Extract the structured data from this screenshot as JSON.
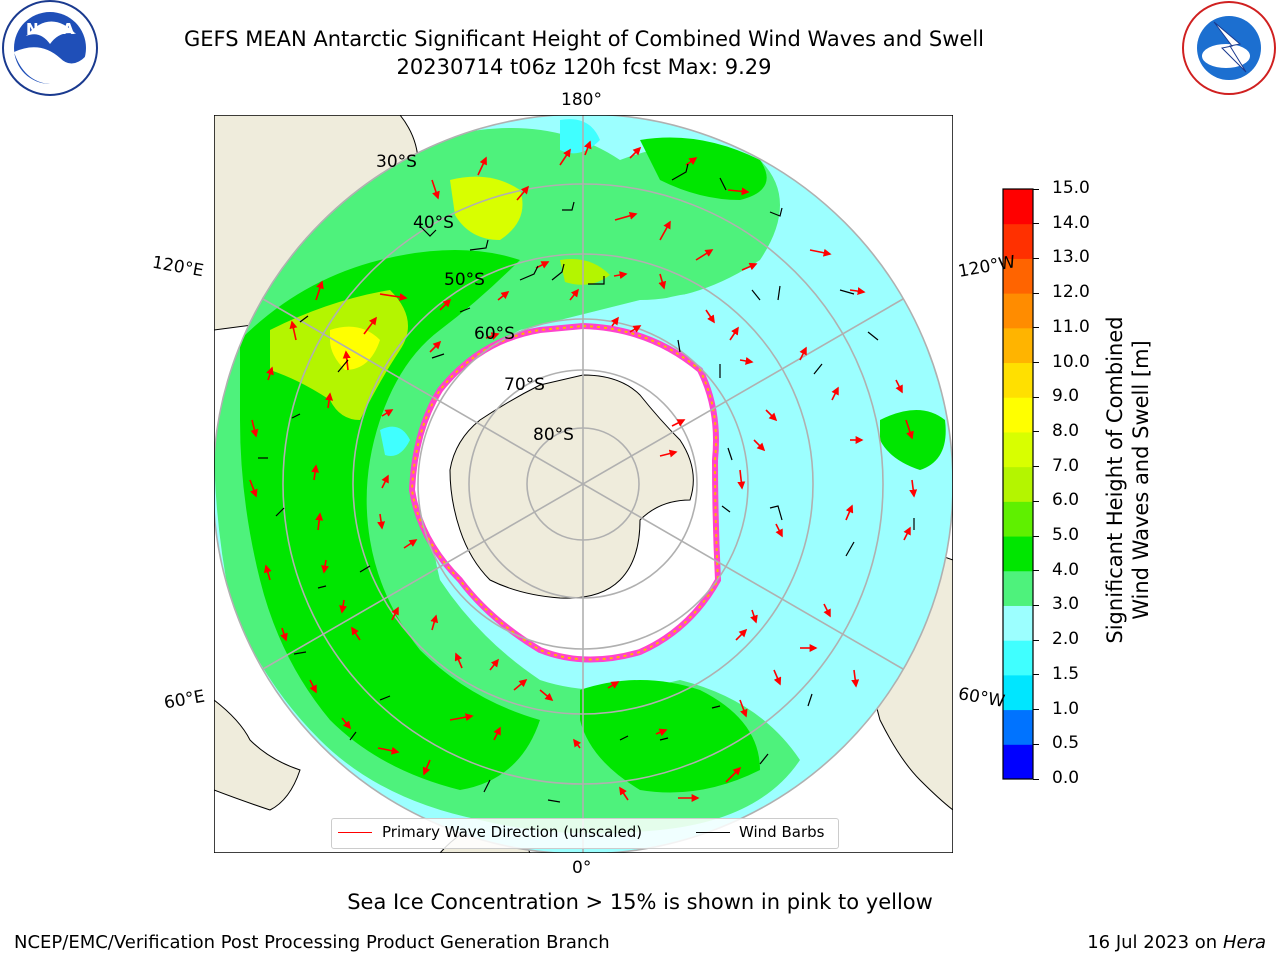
{
  "title": {
    "line1": "GEFS MEAN Antarctic Significant Height of Combined Wind Waves and Swell",
    "line2": "20230714 t06z 120h fcst   Max: 9.29"
  },
  "logos": {
    "left": {
      "name": "NOAA",
      "ring_text": "NATIONAL OCEANIC AND ATMOSPHERIC ADMINISTRATION · U.S. DEPARTMENT OF COMMERCE"
    },
    "right": {
      "name": "NATIONAL WEATHER SERVICE"
    }
  },
  "map": {
    "longitude_labels": {
      "top": "180°",
      "bottom": "0°",
      "left_upper": "120°E",
      "left_lower": "60°E",
      "right_upper": "120°W",
      "right_lower": "60°W"
    },
    "latitude_labels": [
      "30°S",
      "40°S",
      "50°S",
      "60°S",
      "70°S",
      "80°S"
    ],
    "colors": {
      "land": "#efecdc",
      "ice": "#ffffff",
      "ice_edge": "#ff44cc",
      "ice_edge_inner": "#ffb400",
      "grid": "#b0b0b0",
      "wave_arrow": "#ff0000",
      "wind_barb": "#000000"
    }
  },
  "legend": {
    "items": [
      {
        "label": "Primary Wave Direction (unscaled)",
        "color": "#ff0000"
      },
      {
        "label": "Wind Barbs",
        "color": "#000000"
      }
    ]
  },
  "colorbar": {
    "label_line1": "Significant Height of Combined",
    "label_line2": "Wind Waves and Swell [m]",
    "ticks": [
      "0.0",
      "0.5",
      "1.0",
      "1.5",
      "2.0",
      "3.0",
      "4.0",
      "5.0",
      "6.0",
      "7.0",
      "8.0",
      "9.0",
      "10.0",
      "11.0",
      "12.0",
      "13.0",
      "14.0",
      "15.0"
    ],
    "colors": [
      "#0000ff",
      "#0073ff",
      "#00e6ff",
      "#40ffff",
      "#9cffff",
      "#4ef27c",
      "#00e600",
      "#5ff000",
      "#b4f500",
      "#d8ff00",
      "#ffff00",
      "#ffe000",
      "#ffb400",
      "#ff8c00",
      "#ff6400",
      "#ff3000",
      "#ff0000"
    ]
  },
  "caption": "Sea Ice Concentration > 15% is shown in pink to yellow",
  "footer": {
    "left": "NCEP/EMC/Verification Post Processing Product Generation Branch",
    "right_date": "16 Jul 2023 on ",
    "right_machine": "Hera"
  }
}
